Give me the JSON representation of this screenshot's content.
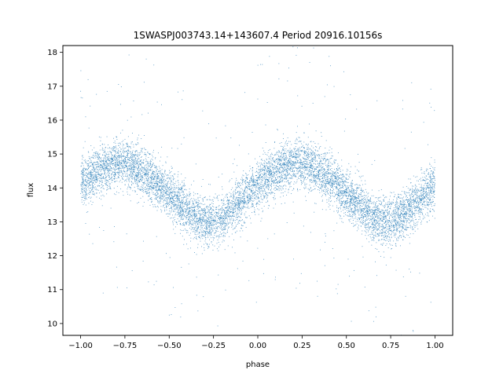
{
  "chart_data": {
    "type": "scatter",
    "title": "1SWASPJ003743.14+143607.4 Period 20916.10156s",
    "xlabel": "phase",
    "ylabel": "flux",
    "xlim": [
      -1.1,
      1.1
    ],
    "ylim": [
      9.65,
      18.2
    ],
    "x_ticks": [
      -1.0,
      -0.75,
      -0.5,
      -0.25,
      0.0,
      0.25,
      0.5,
      0.75,
      1.0
    ],
    "x_tick_labels": [
      "−1.00",
      "−0.75",
      "−0.50",
      "−0.25",
      "0.00",
      "0.25",
      "0.50",
      "0.75",
      "1.00"
    ],
    "y_ticks": [
      10,
      11,
      12,
      13,
      14,
      15,
      16,
      17,
      18
    ],
    "y_tick_labels": [
      "10",
      "11",
      "12",
      "13",
      "14",
      "15",
      "16",
      "17",
      "18"
    ],
    "grid": false,
    "point_color": "#1f77b4",
    "series": [
      {
        "phase_range": [
          -1.0,
          1.0
        ],
        "trend_phase": [
          -1.0,
          -0.9,
          -0.8,
          -0.7,
          -0.6,
          -0.5,
          -0.4,
          -0.3,
          -0.2,
          -0.1,
          0.0,
          0.1,
          0.2,
          0.3,
          0.4,
          0.5,
          0.6,
          0.7,
          0.8,
          0.9,
          1.0
        ],
        "trend_flux": [
          14.1,
          14.5,
          14.75,
          14.65,
          14.3,
          13.8,
          13.3,
          13.0,
          13.1,
          13.6,
          14.1,
          14.5,
          14.75,
          14.65,
          14.3,
          13.8,
          13.3,
          13.0,
          13.1,
          13.6,
          14.1
        ],
        "scatter_sigma": 0.35,
        "n_points": 9000,
        "outlier_fraction": 0.03
      }
    ]
  }
}
